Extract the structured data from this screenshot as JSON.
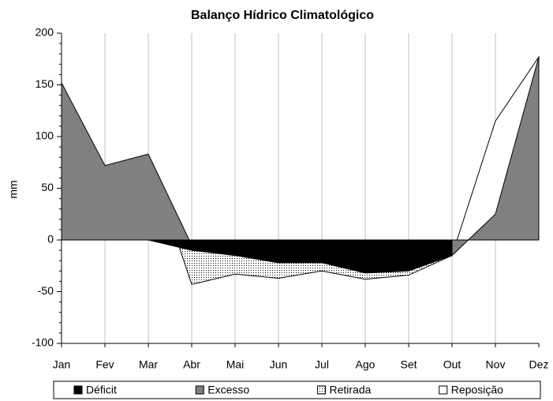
{
  "chart_data": {
    "type": "area",
    "title": "Balanço Hídrico Climatológico",
    "y_label": "mm",
    "categories": [
      "Jan",
      "Fev",
      "Mar",
      "Abr",
      "Mai",
      "Jun",
      "Jul",
      "Ago",
      "Set",
      "Out",
      "Nov",
      "Dez"
    ],
    "ylim": [
      -100,
      200
    ],
    "yticks": [
      -100,
      -50,
      0,
      50,
      100,
      150,
      200
    ],
    "grid": true,
    "legend": "bottom",
    "series": [
      {
        "name": "Déficit",
        "color": "#000000",
        "values": [
          null,
          null,
          0,
          -10,
          -15,
          -22,
          -22,
          -32,
          -30,
          -15,
          null,
          null
        ]
      },
      {
        "name": "Excesso",
        "color": "#808080",
        "values": [
          152,
          72,
          83,
          -5,
          null,
          null,
          null,
          null,
          null,
          -15,
          25,
          177
        ]
      },
      {
        "name": "Retirada",
        "color": "#000000",
        "pattern": "dots",
        "values": [
          null,
          null,
          83,
          -43,
          -33,
          -37,
          -30,
          -38,
          -34,
          -15,
          null,
          null
        ]
      },
      {
        "name": "Reposição",
        "color": "#ffffff",
        "values": [
          null,
          null,
          null,
          null,
          null,
          null,
          null,
          null,
          null,
          -15,
          115,
          177
        ]
      }
    ]
  }
}
